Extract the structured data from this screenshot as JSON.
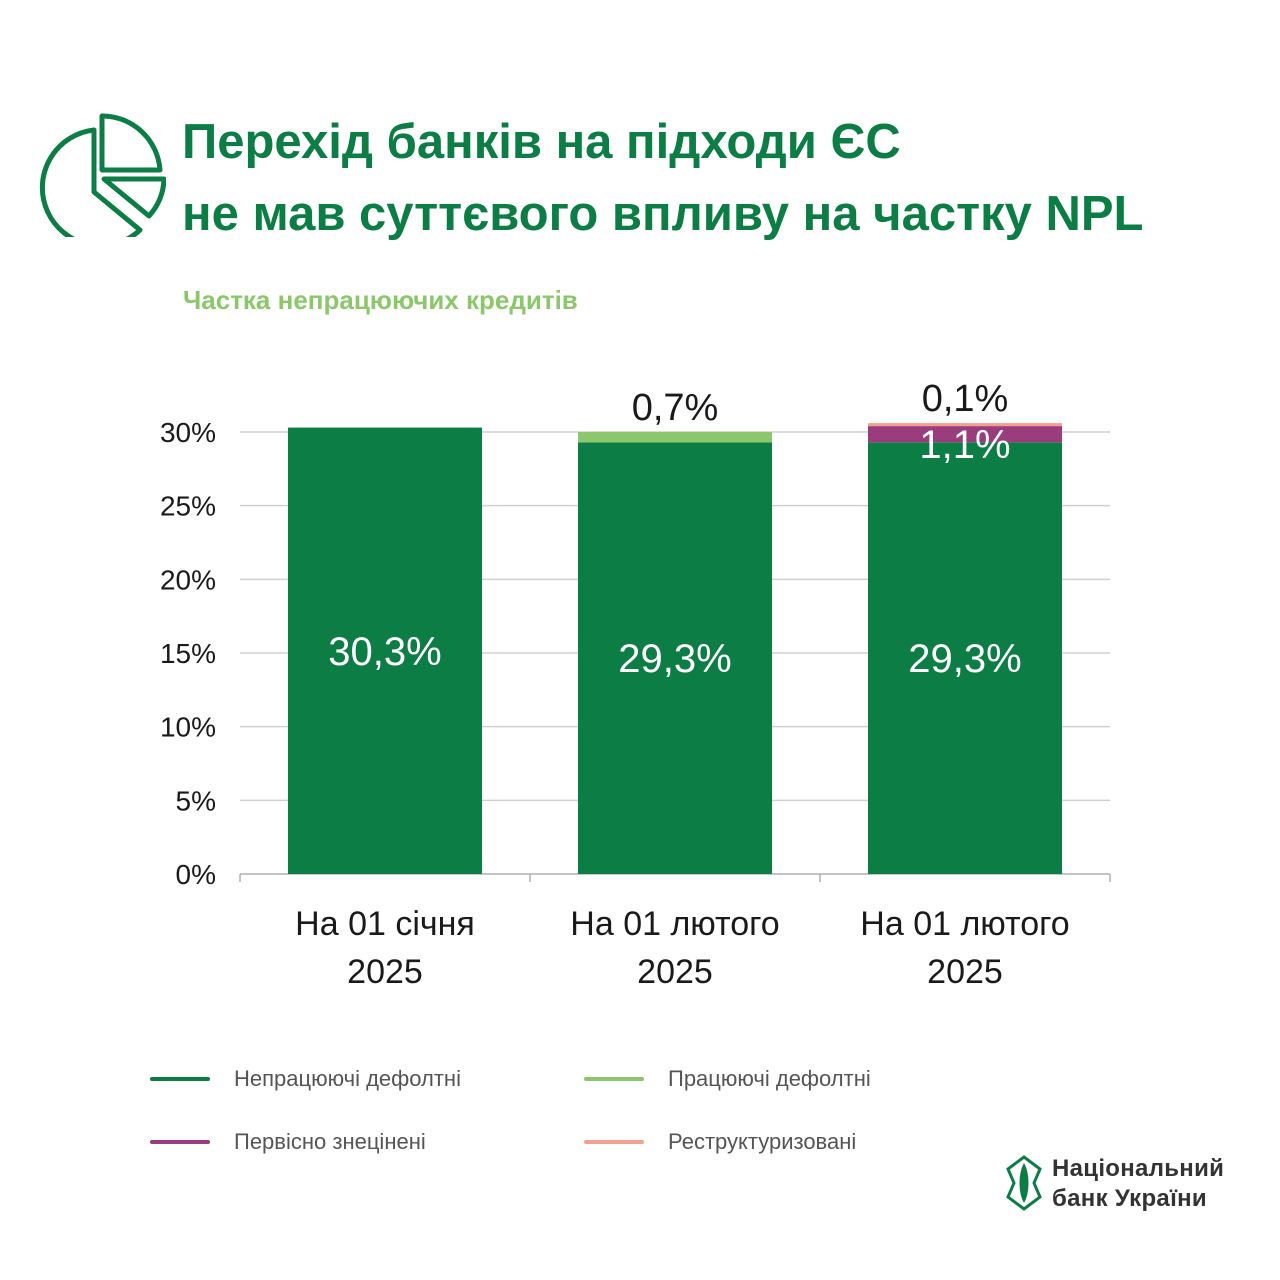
{
  "header": {
    "title_line_1": "Перехід банків на підходи ЄС",
    "title_line_2": "не мав суттєвого впливу на частку NPL",
    "icon": "pie-chart-icon"
  },
  "subtitle": "Частка непрацюючих кредитів",
  "colors": {
    "brand": "#0b7d45",
    "accent_light": "#8cc86b",
    "magenta": "#9b3c7c",
    "salmon": "#f4a091",
    "grid": "#d0d0d0"
  },
  "chart_data": {
    "type": "bar",
    "stacked": true,
    "title": "Частка непрацюючих кредитів",
    "ylim": [
      0,
      30
    ],
    "yticks": [
      "0%",
      "5%",
      "10%",
      "15%",
      "20%",
      "25%",
      "30%"
    ],
    "categories": [
      [
        "На 01 січня",
        "2025"
      ],
      [
        "На 01 лютого",
        "2025"
      ],
      [
        "На 01 лютого",
        "2025"
      ]
    ],
    "series": [
      {
        "name": "Непрацюючі дефолтні",
        "color": "#0b7d45",
        "values": [
          30.3,
          29.3,
          29.3
        ],
        "labels": [
          "30,3%",
          "29,3%",
          "29,3%"
        ]
      },
      {
        "name": "Працюючі дефолтні",
        "color": "#8cc86b",
        "values": [
          0,
          0.7,
          0
        ],
        "labels": [
          "",
          "0,7%",
          ""
        ]
      },
      {
        "name": "Первісно знецінені",
        "color": "#9b3c7c",
        "values": [
          0,
          0,
          1.1
        ],
        "labels": [
          "",
          "",
          "1,1%"
        ]
      },
      {
        "name": "Реструктуризовані",
        "color": "#f4a091",
        "values": [
          0,
          0,
          0.1
        ],
        "labels": [
          "",
          "",
          "0,1%"
        ]
      }
    ],
    "legend_position": "bottom",
    "grid": true
  },
  "footer": {
    "logo_icon": "nbu-logo-icon",
    "org_line_1": "Національний",
    "org_line_2": "банк України"
  }
}
